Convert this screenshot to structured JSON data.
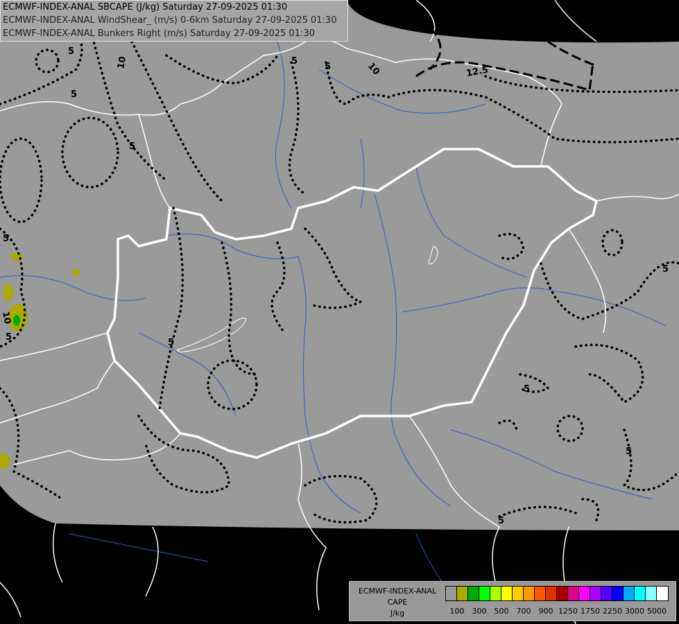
{
  "header": {
    "line1": "ECMWF-INDEX-ANAL SBCAPE (J/kg) Saturday 27-09-2025 01:30",
    "line2": "ECMWF-INDEX-ANAL WindShear_ (m/s) 0-6km Saturday 27-09-2025 01:30",
    "line3": "ECMWF-INDEX-ANAL Bunkers Right (m/s) Saturday 27-09-2025 01:30"
  },
  "legend": {
    "title1": "ECMWF-INDEX-ANAL",
    "title2": "CAPE",
    "unit": "J/kg",
    "colors": [
      "#999999",
      "#aaaa00",
      "#00aa00",
      "#00ff00",
      "#aaff00",
      "#ffff00",
      "#ffcc00",
      "#ff9900",
      "#ff5500",
      "#dd3300",
      "#aa0000",
      "#dd0088",
      "#ff00ff",
      "#aa00ff",
      "#5500ff",
      "#0000ff",
      "#00aaff",
      "#00ffff",
      "#88ffff",
      "#ffffff"
    ],
    "ticks": [
      "100",
      "300",
      "500",
      "700",
      "900",
      "1250",
      "1750",
      "2250",
      "3000",
      "5000"
    ]
  },
  "map": {
    "background": "#000000",
    "domain_fill": "#9a9a9a",
    "border_color": "#ffffff",
    "river_color": "#3366cc",
    "contour_labels": [
      "5",
      "10",
      "5",
      "5",
      "10",
      "12.5",
      "5",
      "5",
      "10",
      "5",
      "5",
      "5",
      "5",
      "5",
      "5",
      "5"
    ]
  }
}
